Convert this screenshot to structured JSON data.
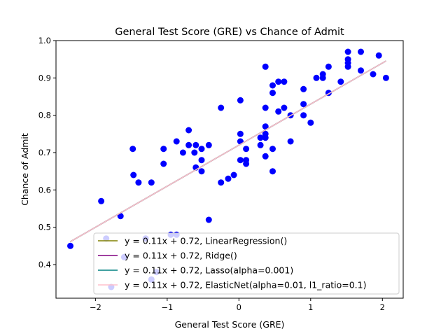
{
  "chart_data": {
    "type": "scatter",
    "title": "General Test Score (GRE) vs Chance of Admit",
    "xlabel": "General Test Score (GRE)",
    "ylabel": "Chance of Admit",
    "xlim": [
      -2.55,
      2.29
    ],
    "ylim": [
      0.31,
      1.0
    ],
    "xticks": [
      -2,
      -1,
      0,
      1,
      2
    ],
    "xtick_labels": [
      "−2",
      "−1",
      "0",
      "1",
      "2"
    ],
    "yticks": [
      0.4,
      0.5,
      0.6,
      0.7,
      0.8,
      0.9,
      1.0
    ],
    "ytick_labels": [
      "0.4",
      "0.5",
      "0.6",
      "0.7",
      "0.8",
      "0.9",
      "1.0"
    ],
    "grid": false,
    "legend_position": "bottom-right",
    "points_color": "#0000ff",
    "points": [
      [
        -2.35,
        0.45
      ],
      [
        -1.92,
        0.57
      ],
      [
        -1.85,
        0.47
      ],
      [
        -1.78,
        0.34
      ],
      [
        -1.65,
        0.53
      ],
      [
        -1.6,
        0.42
      ],
      [
        -1.48,
        0.71
      ],
      [
        -1.47,
        0.64
      ],
      [
        -1.4,
        0.62
      ],
      [
        -1.3,
        0.47
      ],
      [
        -1.22,
        0.36
      ],
      [
        -1.22,
        0.62
      ],
      [
        -1.15,
        0.38
      ],
      [
        -1.05,
        0.67
      ],
      [
        -1.05,
        0.71
      ],
      [
        -0.95,
        0.48
      ],
      [
        -0.87,
        0.73
      ],
      [
        -0.87,
        0.48
      ],
      [
        -0.78,
        0.7
      ],
      [
        -0.7,
        0.76
      ],
      [
        -0.7,
        0.72
      ],
      [
        -0.62,
        0.7
      ],
      [
        -0.6,
        0.66
      ],
      [
        -0.6,
        0.72
      ],
      [
        -0.52,
        0.68
      ],
      [
        -0.52,
        0.65
      ],
      [
        -0.52,
        0.71
      ],
      [
        -0.42,
        0.52
      ],
      [
        -0.42,
        0.72
      ],
      [
        -0.25,
        0.82
      ],
      [
        -0.25,
        0.62
      ],
      [
        -0.15,
        0.63
      ],
      [
        -0.07,
        0.64
      ],
      [
        0.02,
        0.84
      ],
      [
        0.02,
        0.75
      ],
      [
        0.02,
        0.73
      ],
      [
        0.02,
        0.68
      ],
      [
        0.1,
        0.71
      ],
      [
        0.1,
        0.68
      ],
      [
        0.1,
        0.67
      ],
      [
        0.3,
        0.74
      ],
      [
        0.3,
        0.72
      ],
      [
        0.37,
        0.93
      ],
      [
        0.37,
        0.82
      ],
      [
        0.37,
        0.77
      ],
      [
        0.37,
        0.75
      ],
      [
        0.37,
        0.74
      ],
      [
        0.37,
        0.69
      ],
      [
        0.47,
        0.88
      ],
      [
        0.47,
        0.86
      ],
      [
        0.47,
        0.71
      ],
      [
        0.47,
        0.65
      ],
      [
        0.55,
        0.89
      ],
      [
        0.55,
        0.81
      ],
      [
        0.63,
        0.89
      ],
      [
        0.63,
        0.82
      ],
      [
        0.72,
        0.8
      ],
      [
        0.72,
        0.73
      ],
      [
        0.9,
        0.87
      ],
      [
        0.9,
        0.83
      ],
      [
        0.9,
        0.8
      ],
      [
        1.0,
        0.78
      ],
      [
        1.08,
        0.9
      ],
      [
        1.17,
        0.91
      ],
      [
        1.17,
        0.9
      ],
      [
        1.25,
        0.93
      ],
      [
        1.25,
        0.86
      ],
      [
        1.42,
        0.89
      ],
      [
        1.52,
        0.97
      ],
      [
        1.52,
        0.95
      ],
      [
        1.52,
        0.94
      ],
      [
        1.52,
        0.93
      ],
      [
        1.7,
        0.97
      ],
      [
        1.7,
        0.92
      ],
      [
        1.87,
        0.91
      ],
      [
        1.95,
        0.96
      ],
      [
        2.05,
        0.9
      ]
    ],
    "fit_x": [
      -2.35,
      2.05
    ],
    "series": [
      {
        "name": "y = 0.11x + 0.72, LinearRegression()",
        "slope": 0.11,
        "intercept": 0.72,
        "color": "#808000"
      },
      {
        "name": "y = 0.11x + 0.72, Ridge()",
        "slope": 0.11,
        "intercept": 0.72,
        "color": "#800080"
      },
      {
        "name": "y = 0.11x + 0.72, Lasso(alpha=0.001)",
        "slope": 0.11,
        "intercept": 0.72,
        "color": "#008080"
      },
      {
        "name": "y = 0.11x + 0.72, ElasticNet(alpha=0.01, l1_ratio=0.1)",
        "slope": 0.11,
        "intercept": 0.72,
        "color": "#ffc0cb"
      }
    ]
  }
}
